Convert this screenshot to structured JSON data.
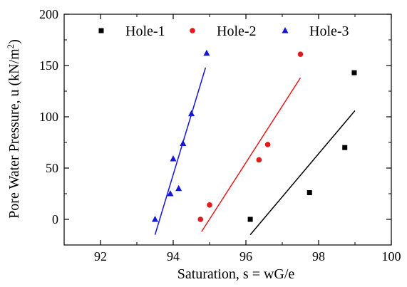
{
  "chart_data": {
    "type": "scatter",
    "xlabel": "Saturation, s = wG/e",
    "ylabel": {
      "prefix": "Pore Water Pressure, u (kN/m",
      "superscript": "2",
      "suffix": ")"
    },
    "xlim": [
      91,
      100
    ],
    "ylim": [
      -25,
      200
    ],
    "xticks": [
      "92",
      "94",
      "96",
      "98",
      "100"
    ],
    "yticks": [
      "0",
      "50",
      "100",
      "150",
      "200"
    ],
    "grid": false,
    "legend_position": "top",
    "series": [
      {
        "name": "Hole-1",
        "color": "#000000",
        "marker": "square",
        "points": [
          [
            96.12,
            0
          ],
          [
            97.75,
            26
          ],
          [
            98.72,
            70
          ],
          [
            98.98,
            143
          ]
        ],
        "fit_line": [
          [
            96.12,
            -15
          ],
          [
            99.0,
            106
          ]
        ]
      },
      {
        "name": "Hole-2",
        "color": "#e31a1c",
        "marker": "circle",
        "points": [
          [
            94.75,
            0
          ],
          [
            95.0,
            14
          ],
          [
            96.36,
            58
          ],
          [
            96.6,
            73
          ],
          [
            97.5,
            161
          ]
        ],
        "fit_line": [
          [
            94.78,
            -12
          ],
          [
            97.5,
            138
          ]
        ]
      },
      {
        "name": "Hole-3",
        "color": "#1515d4",
        "marker": "triangle",
        "points": [
          [
            93.5,
            0
          ],
          [
            93.92,
            25
          ],
          [
            94.0,
            59
          ],
          [
            94.15,
            30
          ],
          [
            94.27,
            74
          ],
          [
            94.5,
            103
          ],
          [
            94.92,
            162
          ]
        ],
        "fit_line": [
          [
            93.5,
            -15
          ],
          [
            94.89,
            148
          ]
        ]
      }
    ]
  }
}
